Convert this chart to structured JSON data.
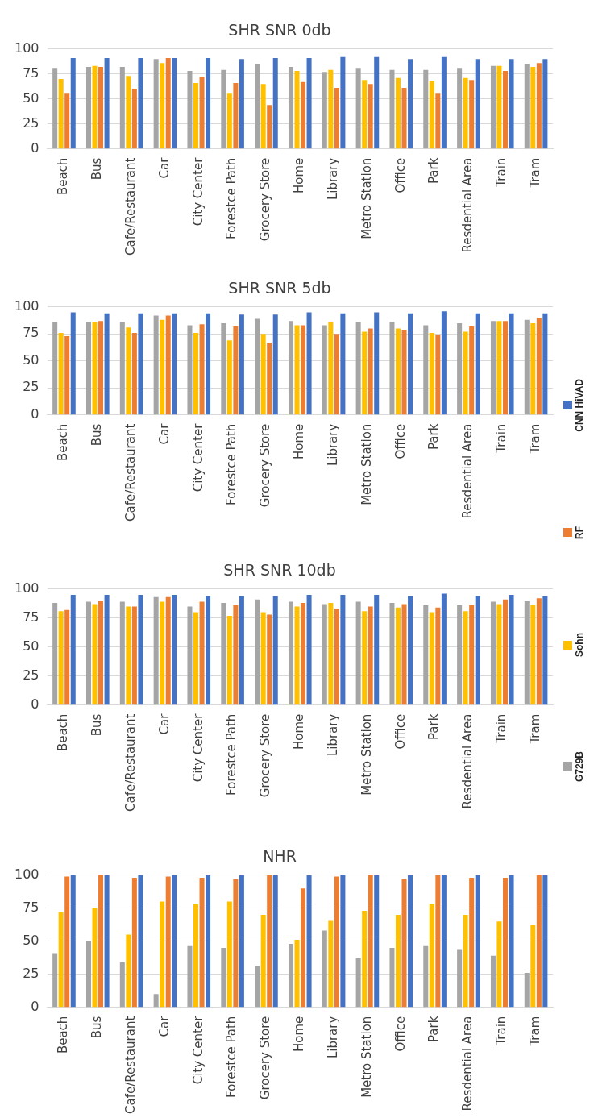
{
  "chart_data": [
    {
      "type": "bar",
      "title": "SHR SNR 0db",
      "categories": [
        "Beach",
        "Bus",
        "Cafe/Restaurant",
        "Car",
        "City Center",
        "Forestce Path",
        "Grocery Store",
        "Home",
        "Library",
        "Metro Station",
        "Office",
        "Park",
        "Resdential Area",
        "Train",
        "Tram"
      ],
      "ylim": [
        0,
        100
      ],
      "yticks": [
        0,
        25,
        50,
        75,
        100
      ],
      "grid": "y",
      "legend": "right",
      "series": [
        {
          "name": "G729B",
          "color": "#a5a5a5",
          "values": [
            81,
            82,
            82,
            90,
            78,
            79,
            85,
            82,
            77,
            81,
            79,
            79,
            81,
            83,
            85
          ]
        },
        {
          "name": "Sohn",
          "color": "#ffc000",
          "values": [
            70,
            83,
            73,
            86,
            66,
            56,
            65,
            78,
            79,
            69,
            71,
            68,
            71,
            83,
            82
          ]
        },
        {
          "name": "RF",
          "color": "#ed7d31",
          "values": [
            56,
            82,
            60,
            91,
            72,
            66,
            44,
            67,
            61,
            65,
            61,
            56,
            69,
            78,
            86
          ]
        },
        {
          "name": "CNN HiVAD",
          "color": "#4472c4",
          "values": [
            91,
            91,
            91,
            91,
            91,
            90,
            91,
            91,
            92,
            92,
            90,
            92,
            90,
            90,
            90
          ]
        }
      ]
    },
    {
      "type": "bar",
      "title": "SHR SNR 5db",
      "categories": [
        "Beach",
        "Bus",
        "Cafe/Restaurant",
        "Car",
        "City Center",
        "Forestce Path",
        "Grocery Store",
        "Home",
        "Library",
        "Metro Station",
        "Office",
        "Park",
        "Resdential Area",
        "Train",
        "Tram"
      ],
      "ylim": [
        0,
        100
      ],
      "yticks": [
        0,
        25,
        50,
        75,
        100
      ],
      "grid": "y",
      "series": [
        {
          "color": "#a5a5a5",
          "values": [
            86,
            86,
            86,
            92,
            83,
            85,
            89,
            87,
            83,
            86,
            86,
            83,
            85,
            87,
            88
          ]
        },
        {
          "color": "#ffc000",
          "values": [
            76,
            86,
            81,
            88,
            76,
            69,
            75,
            83,
            86,
            77,
            80,
            76,
            77,
            87,
            85
          ]
        },
        {
          "color": "#ed7d31",
          "values": [
            73,
            87,
            76,
            92,
            84,
            82,
            67,
            83,
            75,
            80,
            79,
            74,
            82,
            87,
            90
          ]
        },
        {
          "color": "#4472c4",
          "values": [
            95,
            94,
            94,
            94,
            94,
            93,
            93,
            95,
            94,
            95,
            94,
            96,
            94,
            94,
            94
          ]
        }
      ]
    },
    {
      "type": "bar",
      "title": "SHR SNR 10db",
      "categories": [
        "Beach",
        "Bus",
        "Cafe/Restaurant",
        "Car",
        "City Center",
        "Forestce Path",
        "Grocery Store",
        "Home",
        "Library",
        "Metro Station",
        "Office",
        "Park",
        "Resdential Area",
        "Train",
        "Tram"
      ],
      "ylim": [
        0,
        100
      ],
      "yticks": [
        0,
        25,
        50,
        75,
        100
      ],
      "grid": "y",
      "series": [
        {
          "color": "#a5a5a5",
          "values": [
            88,
            89,
            89,
            93,
            85,
            88,
            91,
            89,
            87,
            89,
            88,
            86,
            86,
            89,
            90
          ]
        },
        {
          "color": "#ffc000",
          "values": [
            81,
            87,
            85,
            89,
            80,
            77,
            80,
            85,
            88,
            81,
            84,
            80,
            81,
            87,
            86
          ]
        },
        {
          "color": "#ed7d31",
          "values": [
            82,
            90,
            85,
            93,
            89,
            86,
            78,
            88,
            83,
            85,
            87,
            84,
            86,
            91,
            92
          ]
        },
        {
          "color": "#4472c4",
          "values": [
            95,
            95,
            95,
            95,
            94,
            94,
            94,
            95,
            95,
            95,
            94,
            96,
            94,
            95,
            94
          ]
        }
      ]
    },
    {
      "type": "bar",
      "title": "NHR",
      "categories": [
        "Beach",
        "Bus",
        "Cafe/Restaurant",
        "Car",
        "City Center",
        "Forestce Path",
        "Grocery Store",
        "Home",
        "Library",
        "Metro Station",
        "Office",
        "Park",
        "Resdential Area",
        "Train",
        "Tram"
      ],
      "ylim": [
        0,
        100
      ],
      "yticks": [
        0,
        25,
        50,
        75,
        100
      ],
      "grid": "y",
      "series": [
        {
          "color": "#a5a5a5",
          "values": [
            41,
            50,
            34,
            10,
            47,
            45,
            31,
            48,
            58,
            37,
            45,
            47,
            44,
            39,
            26
          ]
        },
        {
          "color": "#ffc000",
          "values": [
            72,
            75,
            55,
            80,
            78,
            80,
            70,
            51,
            66,
            73,
            70,
            78,
            70,
            65,
            62
          ]
        },
        {
          "color": "#ed7d31",
          "values": [
            99,
            100,
            98,
            99,
            98,
            97,
            100,
            90,
            99,
            100,
            97,
            100,
            98,
            98,
            100
          ]
        },
        {
          "color": "#4472c4",
          "values": [
            100,
            100,
            100,
            100,
            100,
            100,
            100,
            100,
            100,
            100,
            100,
            100,
            100,
            100,
            100
          ]
        }
      ]
    }
  ]
}
